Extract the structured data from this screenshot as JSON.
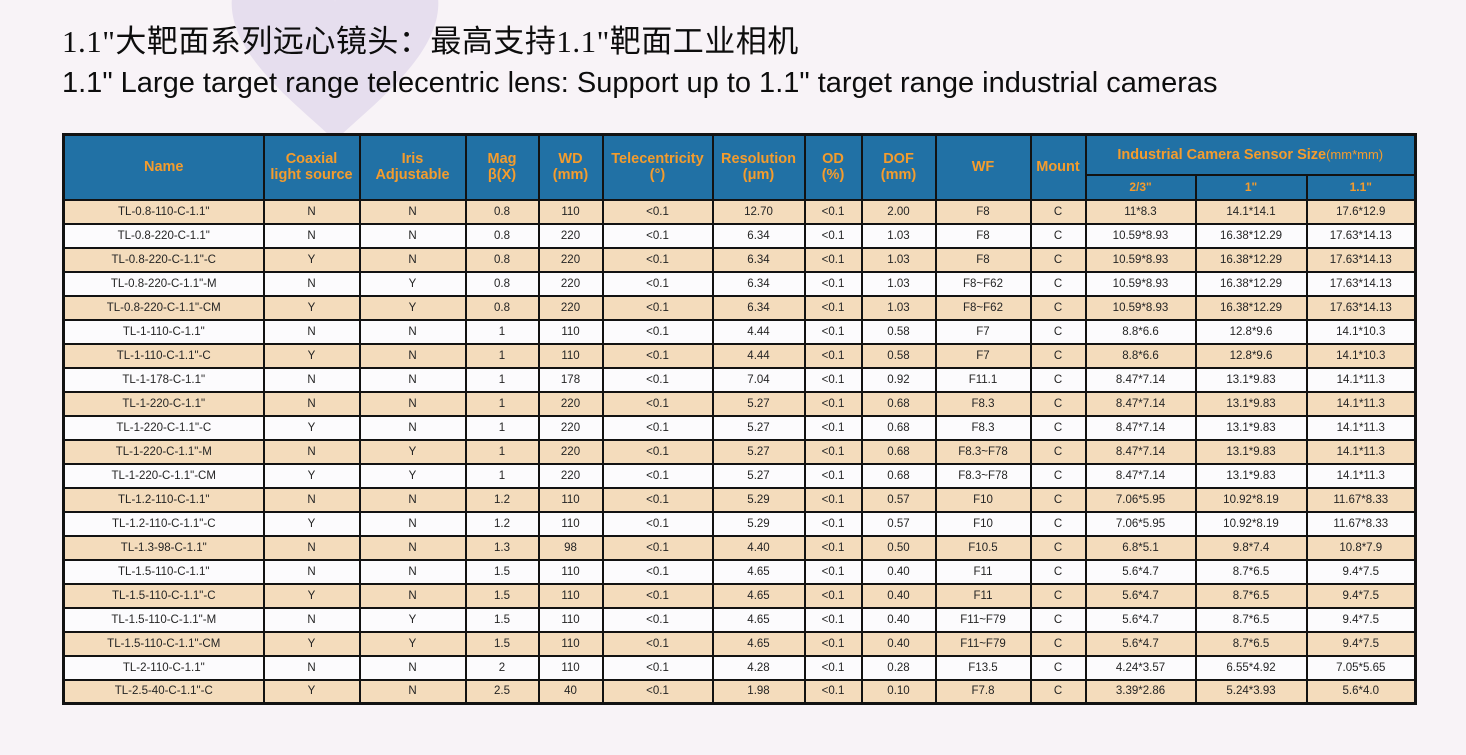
{
  "page": {
    "title_zh": "1.1\"大靶面系列远心镜头：最高支持1.1\"靶面工业相机",
    "title_en": "1.1\" Large target range telecentric lens: Support up to 1.1\" target range industrial cameras"
  },
  "colors": {
    "header_bg": "#2171A5",
    "header_text": "#F49C2D",
    "row_beige": "#F4DCBC",
    "row_white": "#FCFBFD",
    "page_bg": "#F8F3F7",
    "deco_shape": "#E6DEEE",
    "grid_border": "#121212"
  },
  "table": {
    "headers": {
      "name": "Name",
      "coaxial_line1": "Coaxial",
      "coaxial_line2": "light source",
      "iris_line1": "Iris",
      "iris_line2": "Adjustable",
      "mag_line1": "Mag",
      "mag_line2": "β(X)",
      "wd_line1": "WD",
      "wd_line2": "(mm)",
      "tele_line1": "Telecentricity",
      "tele_line2": "(°)",
      "res_line1": "Resolution",
      "res_line2": "(μm)",
      "od_line1": "OD",
      "od_line2": "(%)",
      "dof_line1": "DOF",
      "dof_line2": "(mm)",
      "wf": "WF",
      "mount": "Mount",
      "sensor_title": "Industrial Camera Sensor Size",
      "sensor_unit": "(mm*mm)",
      "sensor_subs": [
        "2/3\"",
        "1\"",
        "1.1\""
      ]
    },
    "rows": [
      [
        "TL-0.8-110-C-1.1\"",
        "N",
        "N",
        "0.8",
        "110",
        "<0.1",
        "12.70",
        "<0.1",
        "2.00",
        "F8",
        "C",
        "11*8.3",
        "14.1*14.1",
        "17.6*12.9"
      ],
      [
        "TL-0.8-220-C-1.1\"",
        "N",
        "N",
        "0.8",
        "220",
        "<0.1",
        "6.34",
        "<0.1",
        "1.03",
        "F8",
        "C",
        "10.59*8.93",
        "16.38*12.29",
        "17.63*14.13"
      ],
      [
        "TL-0.8-220-C-1.1\"-C",
        "Y",
        "N",
        "0.8",
        "220",
        "<0.1",
        "6.34",
        "<0.1",
        "1.03",
        "F8",
        "C",
        "10.59*8.93",
        "16.38*12.29",
        "17.63*14.13"
      ],
      [
        "TL-0.8-220-C-1.1\"-M",
        "N",
        "Y",
        "0.8",
        "220",
        "<0.1",
        "6.34",
        "<0.1",
        "1.03",
        "F8~F62",
        "C",
        "10.59*8.93",
        "16.38*12.29",
        "17.63*14.13"
      ],
      [
        "TL-0.8-220-C-1.1\"-CM",
        "Y",
        "Y",
        "0.8",
        "220",
        "<0.1",
        "6.34",
        "<0.1",
        "1.03",
        "F8~F62",
        "C",
        "10.59*8.93",
        "16.38*12.29",
        "17.63*14.13"
      ],
      [
        "TL-1-110-C-1.1\"",
        "N",
        "N",
        "1",
        "110",
        "<0.1",
        "4.44",
        "<0.1",
        "0.58",
        "F7",
        "C",
        "8.8*6.6",
        "12.8*9.6",
        "14.1*10.3"
      ],
      [
        "TL-1-110-C-1.1\"-C",
        "Y",
        "N",
        "1",
        "110",
        "<0.1",
        "4.44",
        "<0.1",
        "0.58",
        "F7",
        "C",
        "8.8*6.6",
        "12.8*9.6",
        "14.1*10.3"
      ],
      [
        "TL-1-178-C-1.1\"",
        "N",
        "N",
        "1",
        "178",
        "<0.1",
        "7.04",
        "<0.1",
        "0.92",
        "F11.1",
        "C",
        "8.47*7.14",
        "13.1*9.83",
        "14.1*11.3"
      ],
      [
        "TL-1-220-C-1.1\"",
        "N",
        "N",
        "1",
        "220",
        "<0.1",
        "5.27",
        "<0.1",
        "0.68",
        "F8.3",
        "C",
        "8.47*7.14",
        "13.1*9.83",
        "14.1*11.3"
      ],
      [
        "TL-1-220-C-1.1\"-C",
        "Y",
        "N",
        "1",
        "220",
        "<0.1",
        "5.27",
        "<0.1",
        "0.68",
        "F8.3",
        "C",
        "8.47*7.14",
        "13.1*9.83",
        "14.1*11.3"
      ],
      [
        "TL-1-220-C-1.1\"-M",
        "N",
        "Y",
        "1",
        "220",
        "<0.1",
        "5.27",
        "<0.1",
        "0.68",
        "F8.3~F78",
        "C",
        "8.47*7.14",
        "13.1*9.83",
        "14.1*11.3"
      ],
      [
        "TL-1-220-C-1.1\"-CM",
        "Y",
        "Y",
        "1",
        "220",
        "<0.1",
        "5.27",
        "<0.1",
        "0.68",
        "F8.3~F78",
        "C",
        "8.47*7.14",
        "13.1*9.83",
        "14.1*11.3"
      ],
      [
        "TL-1.2-110-C-1.1\"",
        "N",
        "N",
        "1.2",
        "110",
        "<0.1",
        "5.29",
        "<0.1",
        "0.57",
        "F10",
        "C",
        "7.06*5.95",
        "10.92*8.19",
        "11.67*8.33"
      ],
      [
        "TL-1.2-110-C-1.1\"-C",
        "Y",
        "N",
        "1.2",
        "110",
        "<0.1",
        "5.29",
        "<0.1",
        "0.57",
        "F10",
        "C",
        "7.06*5.95",
        "10.92*8.19",
        "11.67*8.33"
      ],
      [
        "TL-1.3-98-C-1.1\"",
        "N",
        "N",
        "1.3",
        "98",
        "<0.1",
        "4.40",
        "<0.1",
        "0.50",
        "F10.5",
        "C",
        "6.8*5.1",
        "9.8*7.4",
        "10.8*7.9"
      ],
      [
        "TL-1.5-110-C-1.1\"",
        "N",
        "N",
        "1.5",
        "110",
        "<0.1",
        "4.65",
        "<0.1",
        "0.40",
        "F11",
        "C",
        "5.6*4.7",
        "8.7*6.5",
        "9.4*7.5"
      ],
      [
        "TL-1.5-110-C-1.1\"-C",
        "Y",
        "N",
        "1.5",
        "110",
        "<0.1",
        "4.65",
        "<0.1",
        "0.40",
        "F11",
        "C",
        "5.6*4.7",
        "8.7*6.5",
        "9.4*7.5"
      ],
      [
        "TL-1.5-110-C-1.1\"-M",
        "N",
        "Y",
        "1.5",
        "110",
        "<0.1",
        "4.65",
        "<0.1",
        "0.40",
        "F11~F79",
        "C",
        "5.6*4.7",
        "8.7*6.5",
        "9.4*7.5"
      ],
      [
        "TL-1.5-110-C-1.1\"-CM",
        "Y",
        "Y",
        "1.5",
        "110",
        "<0.1",
        "4.65",
        "<0.1",
        "0.40",
        "F11~F79",
        "C",
        "5.6*4.7",
        "8.7*6.5",
        "9.4*7.5"
      ],
      [
        "TL-2-110-C-1.1\"",
        "N",
        "N",
        "2",
        "110",
        "<0.1",
        "4.28",
        "<0.1",
        "0.28",
        "F13.5",
        "C",
        "4.24*3.57",
        "6.55*4.92",
        "7.05*5.65"
      ],
      [
        "TL-2.5-40-C-1.1\"-C",
        "Y",
        "N",
        "2.5",
        "40",
        "<0.1",
        "1.98",
        "<0.1",
        "0.10",
        "F7.8",
        "C",
        "3.39*2.86",
        "5.24*3.93",
        "5.6*4.0"
      ]
    ]
  }
}
